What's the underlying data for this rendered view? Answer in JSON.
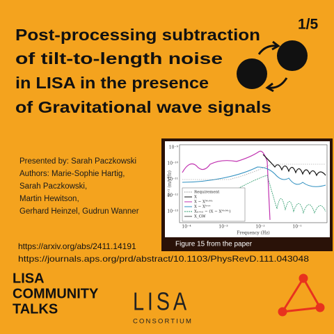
{
  "header": {
    "title_lines": [
      "Post-processing subtraction",
      "of tilt-to-length noise",
      "in LISA in the presence",
      "of Gravitational wave signals"
    ],
    "page": "1/5"
  },
  "credits": [
    "Presented by: Sarah Paczkowski",
    "Authors: Marie-Sophie Hartig,",
    "Sarah Paczkowski,",
    "Martin Hewitson,",
    "Gerhard Heinzel, Gudrun Wanner"
  ],
  "figure": {
    "caption": "Figure 15 from the paper",
    "ylabel": "S¹ᐟ² (m/√Hz)",
    "xlabel": "Frequency (Hz)",
    "yticks": [
      "10⁻⁹",
      "10⁻¹⁰",
      "10⁻¹¹",
      "10⁻¹²",
      "10⁻¹³"
    ],
    "xticks": [
      "10⁻⁴",
      "10⁻³",
      "10⁻²",
      "10⁻¹"
    ],
    "legend": [
      "Requirement",
      "X",
      "X − Xᴹᶜᴹᶜ",
      "X − Xᵗʳᵘᵉ",
      "Xₕ₌ₜₜₗ − (X − Xᴹᶜᴹᶜ)",
      "X_GW"
    ]
  },
  "links": [
    "https://arxiv.org/abs/2411.14191",
    "https://journals.aps.org/prd/abstract/10.1103/PhysRevD.111.043048"
  ],
  "footer": {
    "series_lines": [
      "LISA",
      "COMMUNITY",
      "TALKS"
    ],
    "logo": "LISA",
    "logo_sub": "CONSORTIUM"
  }
}
